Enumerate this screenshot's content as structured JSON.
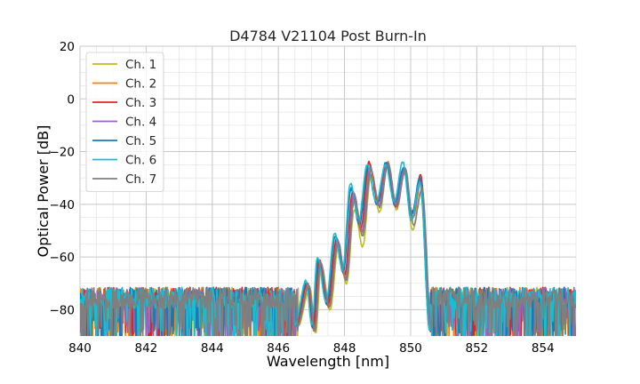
{
  "chart_data": {
    "type": "line",
    "title": "D4784 V21104 Post Burn-In",
    "xlabel": "Wavelength [nm]",
    "ylabel": "Optical Power [dB]",
    "xlim": [
      840,
      855
    ],
    "ylim": [
      -90,
      20
    ],
    "xticks": [
      840,
      842,
      844,
      846,
      848,
      850,
      852,
      854
    ],
    "yticks": [
      20,
      0,
      -20,
      -40,
      -60,
      -80
    ],
    "xtick_labels": [
      "840",
      "842",
      "844",
      "846",
      "848",
      "850",
      "852",
      "854"
    ],
    "ytick_labels": [
      "20",
      "0",
      "−20",
      "−40",
      "−60",
      "−80"
    ],
    "minor_grid_x_step": 0.5,
    "minor_grid_y_step": 5,
    "grid": true,
    "legend_position": "top-left",
    "noise_floor_db": -75,
    "series": [
      {
        "name": "Ch. 1",
        "color": "#bcbd22",
        "shift": 0.03,
        "peaks": [
          {
            "x": 846.95,
            "y": -72
          },
          {
            "x": 847.3,
            "y": -63
          },
          {
            "x": 847.82,
            "y": -56
          },
          {
            "x": 848.3,
            "y": -42
          },
          {
            "x": 848.8,
            "y": -29
          },
          {
            "x": 849.32,
            "y": -24
          },
          {
            "x": 849.82,
            "y": -28
          },
          {
            "x": 850.3,
            "y": -36
          }
        ]
      },
      {
        "name": "Ch. 2",
        "color": "#ff7f0e",
        "shift": 0.0,
        "peaks": [
          {
            "x": 846.9,
            "y": -71
          },
          {
            "x": 847.25,
            "y": -62
          },
          {
            "x": 847.78,
            "y": -54
          },
          {
            "x": 848.27,
            "y": -37
          },
          {
            "x": 848.76,
            "y": -25
          },
          {
            "x": 849.3,
            "y": -24
          },
          {
            "x": 849.82,
            "y": -27
          },
          {
            "x": 850.32,
            "y": -31
          }
        ]
      },
      {
        "name": "Ch. 3",
        "color": "#d62728",
        "shift": -0.02,
        "peaks": [
          {
            "x": 846.88,
            "y": -70
          },
          {
            "x": 847.23,
            "y": -61
          },
          {
            "x": 847.76,
            "y": -53
          },
          {
            "x": 848.25,
            "y": -35
          },
          {
            "x": 848.74,
            "y": -24
          },
          {
            "x": 849.28,
            "y": -25
          },
          {
            "x": 849.8,
            "y": -27
          },
          {
            "x": 850.3,
            "y": -29
          }
        ]
      },
      {
        "name": "Ch. 4",
        "color": "#9467bd",
        "shift": 0.01,
        "peaks": [
          {
            "x": 846.92,
            "y": -71
          },
          {
            "x": 847.27,
            "y": -62
          },
          {
            "x": 847.8,
            "y": -54
          },
          {
            "x": 848.28,
            "y": -36
          },
          {
            "x": 848.78,
            "y": -26
          },
          {
            "x": 849.3,
            "y": -24
          },
          {
            "x": 849.82,
            "y": -26
          },
          {
            "x": 850.3,
            "y": -31
          }
        ]
      },
      {
        "name": "Ch. 5",
        "color": "#1f77b4",
        "shift": -0.04,
        "peaks": [
          {
            "x": 846.85,
            "y": -70
          },
          {
            "x": 847.2,
            "y": -61
          },
          {
            "x": 847.72,
            "y": -52
          },
          {
            "x": 848.2,
            "y": -34
          },
          {
            "x": 848.7,
            "y": -26
          },
          {
            "x": 849.25,
            "y": -24
          },
          {
            "x": 849.78,
            "y": -26
          },
          {
            "x": 850.28,
            "y": -30
          }
        ]
      },
      {
        "name": "Ch. 6",
        "color": "#17becf",
        "shift": -0.05,
        "peaks": [
          {
            "x": 846.84,
            "y": -69
          },
          {
            "x": 847.18,
            "y": -60
          },
          {
            "x": 847.7,
            "y": -51
          },
          {
            "x": 848.18,
            "y": -32
          },
          {
            "x": 848.68,
            "y": -25
          },
          {
            "x": 849.24,
            "y": -25
          },
          {
            "x": 849.76,
            "y": -24
          },
          {
            "x": 850.28,
            "y": -32
          }
        ]
      },
      {
        "name": "Ch. 7",
        "color": "#7f7f7f",
        "shift": 0.02,
        "peaks": [
          {
            "x": 846.93,
            "y": -71
          },
          {
            "x": 847.28,
            "y": -62
          },
          {
            "x": 847.8,
            "y": -55
          },
          {
            "x": 848.3,
            "y": -38
          },
          {
            "x": 848.8,
            "y": -27
          },
          {
            "x": 849.32,
            "y": -25
          },
          {
            "x": 849.84,
            "y": -27
          },
          {
            "x": 850.34,
            "y": -34
          }
        ]
      }
    ]
  }
}
